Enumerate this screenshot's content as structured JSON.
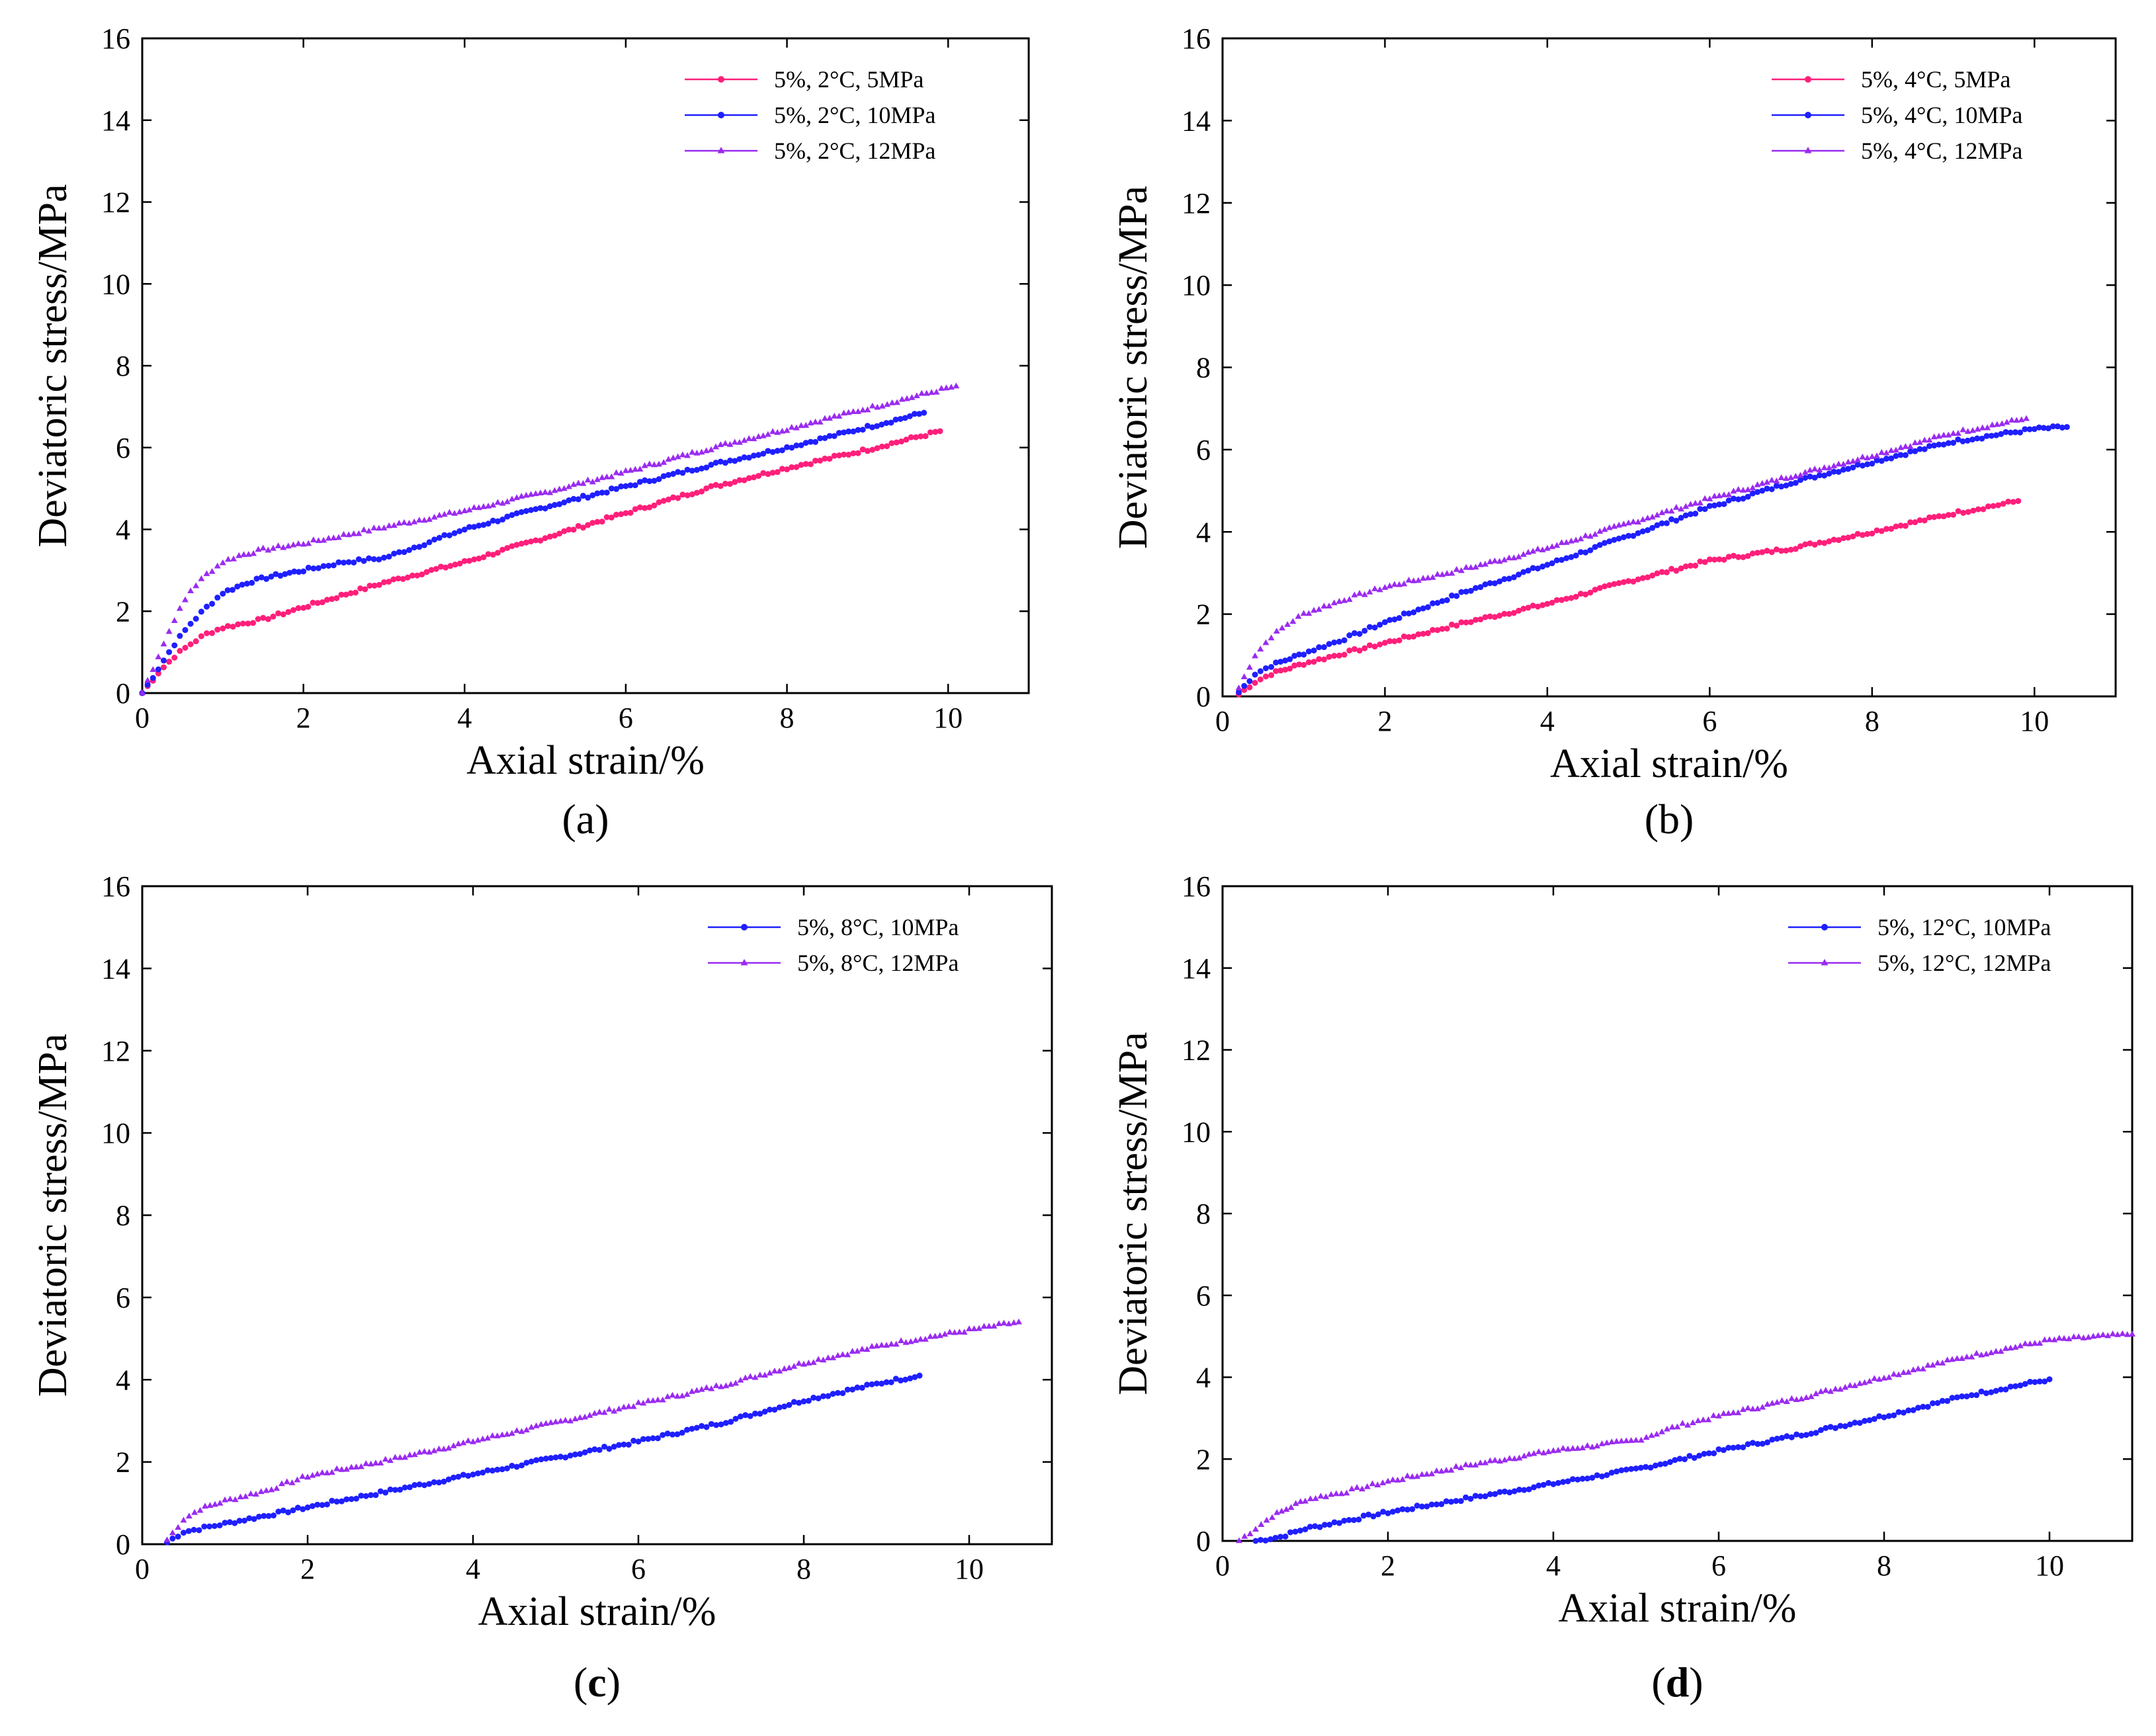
{
  "figure": {
    "panels": [
      {
        "label": "(a)",
        "bold": false
      },
      {
        "label": "(b)",
        "bold": false
      },
      {
        "label": "(c)",
        "bold": true
      },
      {
        "label": "(d)",
        "bold": true
      }
    ]
  },
  "chart_data": [
    {
      "type": "scatter",
      "panel": "(a)",
      "xlabel": "Axial strain/%",
      "ylabel": "Deviatoric stress/MPa",
      "xlim": [
        0,
        11
      ],
      "ylim": [
        0,
        16
      ],
      "xticks": [
        0,
        2,
        4,
        6,
        8,
        10
      ],
      "yticks": [
        0,
        2,
        4,
        6,
        8,
        10,
        12,
        14,
        16
      ],
      "legend_position": "top-right",
      "series": [
        {
          "name": "5%, 2°C, 5MPa",
          "color": "#ff1f7a",
          "marker": "circle",
          "x": [
            0,
            0.2,
            0.4,
            0.6,
            0.8,
            1.0,
            1.5,
            2.0,
            3.0,
            4.0,
            5.0,
            6.0,
            7.0,
            8.0,
            9.0,
            9.9
          ],
          "y": [
            0,
            0.5,
            0.9,
            1.2,
            1.45,
            1.6,
            1.8,
            2.1,
            2.7,
            3.2,
            3.8,
            4.4,
            5.0,
            5.5,
            5.95,
            6.4
          ]
        },
        {
          "name": "5%, 2°C, 10MPa",
          "color": "#1f1fff",
          "marker": "circle",
          "x": [
            0,
            0.2,
            0.4,
            0.6,
            0.8,
            1.0,
            1.3,
            1.6,
            2.0,
            2.5,
            3.0,
            3.5,
            4.0,
            5.0,
            6.0,
            7.0,
            8.0,
            9.0,
            9.7
          ],
          "y": [
            0,
            0.6,
            1.2,
            1.7,
            2.1,
            2.45,
            2.7,
            2.85,
            3.0,
            3.2,
            3.3,
            3.65,
            4.0,
            4.55,
            5.05,
            5.55,
            6.0,
            6.5,
            6.85
          ]
        },
        {
          "name": "5%, 2°C, 12MPa",
          "color": "#9a2bf0",
          "marker": "triangle",
          "x": [
            0,
            0.2,
            0.4,
            0.6,
            0.8,
            1.0,
            1.2,
            1.5,
            2.0,
            2.5,
            3.0,
            3.5,
            4.0,
            5.0,
            6.0,
            7.0,
            8.0,
            9.0,
            10.1
          ],
          "y": [
            0,
            0.9,
            1.8,
            2.5,
            2.9,
            3.2,
            3.35,
            3.5,
            3.65,
            3.85,
            4.05,
            4.25,
            4.45,
            4.9,
            5.4,
            5.95,
            6.45,
            6.95,
            7.5
          ]
        }
      ]
    },
    {
      "type": "scatter",
      "panel": "(b)",
      "xlabel": "Axial strain/%",
      "ylabel": "Deviatoric stress/MPa",
      "xlim": [
        0,
        11
      ],
      "ylim": [
        0,
        16
      ],
      "xticks": [
        0,
        2,
        4,
        6,
        8,
        10
      ],
      "yticks": [
        0,
        2,
        4,
        6,
        8,
        10,
        12,
        14,
        16
      ],
      "legend_position": "top-right",
      "series": [
        {
          "name": "5%, 4°C, 5MPa",
          "color": "#ff1f7a",
          "marker": "circle",
          "x": [
            0.2,
            0.4,
            0.6,
            1.0,
            1.5,
            2.0,
            3.0,
            4.0,
            5.0,
            6.0,
            7.0,
            8.0,
            9.0,
            9.8
          ],
          "y": [
            0.05,
            0.35,
            0.55,
            0.8,
            1.05,
            1.3,
            1.8,
            2.25,
            2.8,
            3.3,
            3.6,
            4.0,
            4.45,
            4.75
          ]
        },
        {
          "name": "5%, 4°C, 10MPa",
          "color": "#1f1fff",
          "marker": "circle",
          "x": [
            0.2,
            0.4,
            0.6,
            1.0,
            1.5,
            2.0,
            3.0,
            4.0,
            5.0,
            6.0,
            7.0,
            8.0,
            9.0,
            10.0,
            10.4
          ],
          "y": [
            0.1,
            0.55,
            0.75,
            1.05,
            1.4,
            1.8,
            2.55,
            3.2,
            3.9,
            4.6,
            5.2,
            5.7,
            6.2,
            6.5,
            6.55
          ]
        },
        {
          "name": "5%, 4°C, 12MPa",
          "color": "#9a2bf0",
          "marker": "triangle",
          "x": [
            0.2,
            0.4,
            0.6,
            0.8,
            1.0,
            1.5,
            2.0,
            3.0,
            4.0,
            5.0,
            6.0,
            7.0,
            8.0,
            9.0,
            9.9
          ],
          "y": [
            0.2,
            1.0,
            1.45,
            1.75,
            2.0,
            2.35,
            2.65,
            3.1,
            3.6,
            4.2,
            4.8,
            5.35,
            5.85,
            6.4,
            6.75
          ]
        }
      ]
    },
    {
      "type": "scatter",
      "panel": "(c)",
      "xlabel": "Axial strain/%",
      "ylabel": "Deviatoric stress/MPa",
      "xlim": [
        0,
        11
      ],
      "ylim": [
        0,
        16
      ],
      "xticks": [
        0,
        2,
        4,
        6,
        8,
        10
      ],
      "yticks": [
        0,
        2,
        4,
        6,
        8,
        10,
        12,
        14,
        16
      ],
      "legend_position": "top-right",
      "series": [
        {
          "name": "5%, 8°C, 10MPa",
          "color": "#1f1fff",
          "marker": "circle",
          "x": [
            0.3,
            0.5,
            1.0,
            2.0,
            3.0,
            4.0,
            5.0,
            6.0,
            7.0,
            8.0,
            9.0,
            9.4
          ],
          "y": [
            0.05,
            0.3,
            0.5,
            0.9,
            1.3,
            1.7,
            2.1,
            2.5,
            2.95,
            3.5,
            3.95,
            4.1
          ]
        },
        {
          "name": "5%, 8°C, 12MPa",
          "color": "#9a2bf0",
          "marker": "triangle",
          "x": [
            0.3,
            0.5,
            0.7,
            1.0,
            1.5,
            2.0,
            3.0,
            4.0,
            5.0,
            6.0,
            7.0,
            8.0,
            9.0,
            10.0,
            10.6
          ],
          "y": [
            0.1,
            0.6,
            0.85,
            1.05,
            1.3,
            1.65,
            2.05,
            2.5,
            2.95,
            3.4,
            3.85,
            4.4,
            4.85,
            5.2,
            5.4
          ]
        }
      ]
    },
    {
      "type": "scatter",
      "panel": "(d)",
      "xlabel": "Axial strain/%",
      "ylabel": "Deviatoric stress/MPa",
      "xlim": [
        0,
        11
      ],
      "ylim": [
        0,
        16
      ],
      "xticks": [
        0,
        2,
        4,
        6,
        8,
        10
      ],
      "yticks": [
        0,
        2,
        4,
        6,
        8,
        10,
        12,
        14,
        16
      ],
      "legend_position": "top-right",
      "series": [
        {
          "name": "5%, 12°C, 10MPa",
          "color": "#1f1fff",
          "marker": "circle",
          "x": [
            0.4,
            0.7,
            1.0,
            2.0,
            3.0,
            4.0,
            5.0,
            6.0,
            7.0,
            8.0,
            9.0,
            10.0
          ],
          "y": [
            0.0,
            0.1,
            0.3,
            0.7,
            1.05,
            1.4,
            1.75,
            2.2,
            2.6,
            3.05,
            3.55,
            3.95
          ]
        },
        {
          "name": "5%, 12°C, 12MPa",
          "color": "#9a2bf0",
          "marker": "triangle",
          "x": [
            0.2,
            0.4,
            0.6,
            1.0,
            1.5,
            2.0,
            3.0,
            4.0,
            5.0,
            5.5,
            6.0,
            7.0,
            8.0,
            9.0,
            10.0,
            11.0
          ],
          "y": [
            0.0,
            0.3,
            0.6,
            1.0,
            1.2,
            1.45,
            1.85,
            2.2,
            2.45,
            2.8,
            3.05,
            3.5,
            4.0,
            4.5,
            4.9,
            5.05
          ]
        }
      ]
    }
  ]
}
